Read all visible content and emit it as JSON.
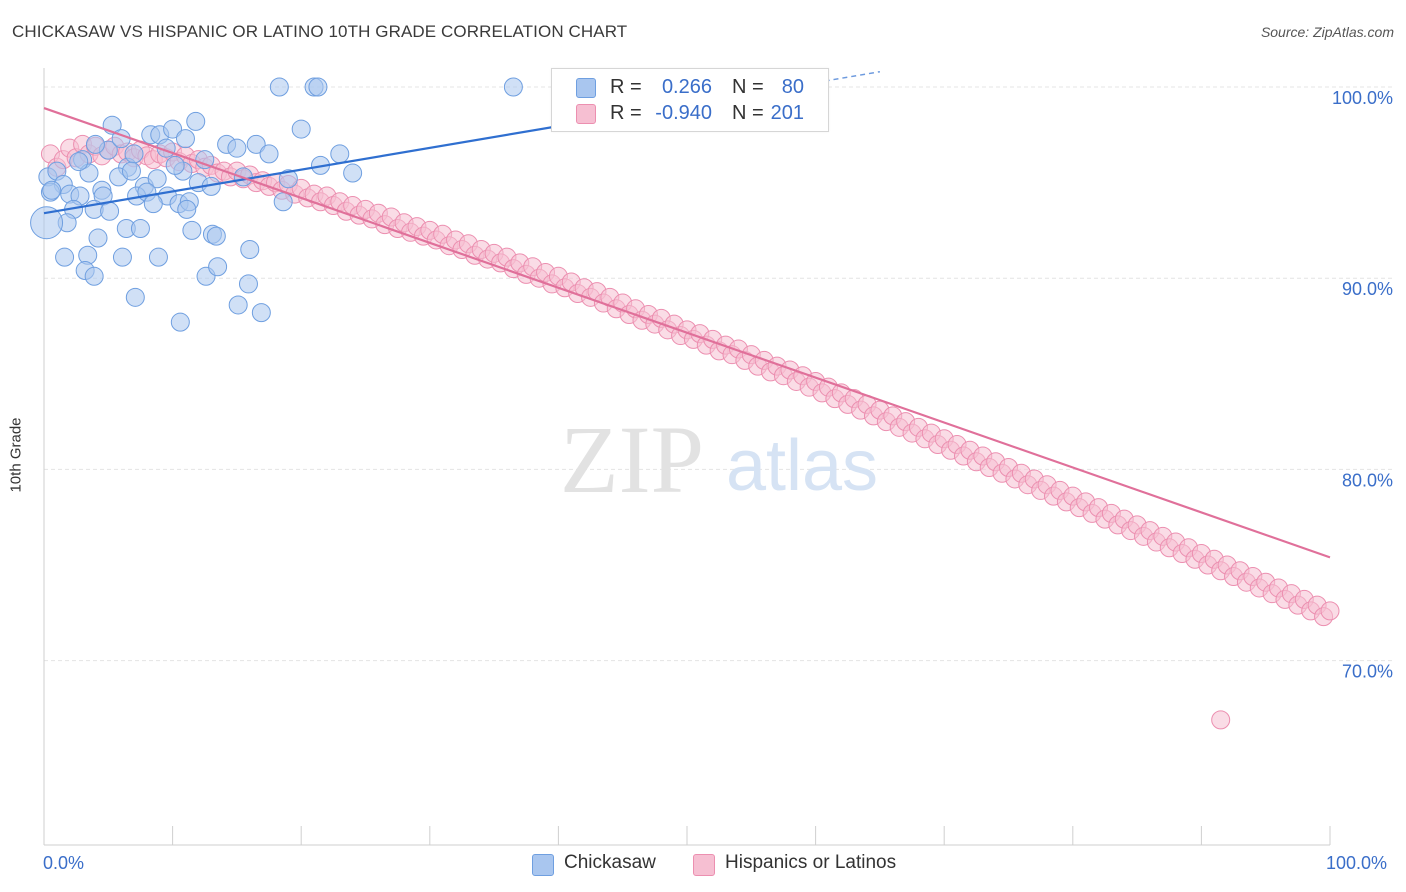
{
  "title": "CHICKASAW VS HISPANIC OR LATINO 10TH GRADE CORRELATION CHART",
  "source": "Source: ZipAtlas.com",
  "watermark": {
    "zip": "ZIP",
    "atlas": "atlas"
  },
  "colors": {
    "blue_fill": "#a9c6ef",
    "blue_stroke": "#6f9fe0",
    "blue_line": "#2f6fd0",
    "pink_fill": "#f6bfd2",
    "pink_stroke": "#ec8fb0",
    "pink_line": "#e0709a",
    "tick_text": "#3a6ec9",
    "grid": "#e4e4e4"
  },
  "legend": {
    "rows": [
      {
        "r_label": "R =",
        "r_value": "0.266",
        "n_label": "N =",
        "n_value": "80",
        "color": "#a9c6ef"
      },
      {
        "r_label": "R =",
        "r_value": "-0.940",
        "n_label": "N =",
        "n_value": "201",
        "color": "#f6bfd2"
      }
    ]
  },
  "bottom_legend": [
    {
      "label": "Chickasaw",
      "color": "#a9c6ef"
    },
    {
      "label": "Hispanics or Latinos",
      "color": "#f6bfd2"
    }
  ],
  "chart_data": {
    "type": "scatter",
    "title": "CHICKASAW VS HISPANIC OR LATINO 10TH GRADE CORRELATION CHART",
    "xlabel": "",
    "ylabel": "10th Grade",
    "xlim": [
      0,
      100
    ],
    "ylim": [
      60,
      102
    ],
    "x_tick_labels": [
      "0.0%",
      "100.0%"
    ],
    "y_ticks": [
      100,
      90,
      80,
      70
    ],
    "y_tick_labels": [
      "100.0%",
      "90.0%",
      "80.0%",
      "70.0%"
    ],
    "grid": true,
    "series": [
      {
        "name": "Chickasaw",
        "trend": {
          "x": [
            0,
            65
          ],
          "y": [
            93.4,
            100.8
          ],
          "dashed_from_x": 40
        },
        "points": [
          [
            18.3,
            100
          ],
          [
            21,
            100
          ],
          [
            21.3,
            100
          ],
          [
            36.5,
            100
          ],
          [
            5.3,
            98
          ],
          [
            8.3,
            97.5
          ],
          [
            9,
            97.5
          ],
          [
            10,
            97.8
          ],
          [
            11,
            97.3
          ],
          [
            11.8,
            98.2
          ],
          [
            14.2,
            97
          ],
          [
            3,
            96.2
          ],
          [
            5,
            96.7
          ],
          [
            6.5,
            95.8
          ],
          [
            7,
            96.5
          ],
          [
            12.5,
            96.2
          ],
          [
            15,
            96.8
          ],
          [
            16.5,
            97
          ],
          [
            20,
            97.8
          ],
          [
            23,
            96.5
          ],
          [
            0.3,
            95.3
          ],
          [
            1,
            95.6
          ],
          [
            1.5,
            94.9
          ],
          [
            3.5,
            95.5
          ],
          [
            4.5,
            94.6
          ],
          [
            5.8,
            95.3
          ],
          [
            6.8,
            95.6
          ],
          [
            7.8,
            94.8
          ],
          [
            8.8,
            95.2
          ],
          [
            10.8,
            95.6
          ],
          [
            12,
            95
          ],
          [
            15.5,
            95.3
          ],
          [
            21.5,
            95.9
          ],
          [
            24,
            95.5
          ],
          [
            0.5,
            94.5
          ],
          [
            2,
            94.4
          ],
          [
            2.8,
            94.3
          ],
          [
            4.6,
            94.3
          ],
          [
            7.2,
            94.3
          ],
          [
            8,
            94.5
          ],
          [
            9.6,
            94.3
          ],
          [
            10.5,
            93.9
          ],
          [
            11.3,
            94
          ],
          [
            18.6,
            94
          ],
          [
            2.3,
            93.6
          ],
          [
            3.9,
            93.6
          ],
          [
            5.1,
            93.5
          ],
          [
            8.5,
            93.9
          ],
          [
            11.1,
            93.6
          ],
          [
            1.8,
            92.9
          ],
          [
            6.4,
            92.6
          ],
          [
            7.5,
            92.6
          ],
          [
            11.5,
            92.5
          ],
          [
            13.1,
            92.3
          ],
          [
            13.4,
            92.2
          ],
          [
            4.2,
            92.1
          ],
          [
            3.4,
            91.2
          ],
          [
            1.6,
            91.1
          ],
          [
            6.1,
            91.1
          ],
          [
            8.9,
            91.1
          ],
          [
            16,
            91.5
          ],
          [
            3.2,
            90.4
          ],
          [
            3.9,
            90.1
          ],
          [
            12.6,
            90.1
          ],
          [
            13.5,
            90.6
          ],
          [
            15.9,
            89.7
          ],
          [
            7.1,
            89
          ],
          [
            15.1,
            88.6
          ],
          [
            16.9,
            88.2
          ],
          [
            10.6,
            87.7
          ],
          [
            0.2,
            92.9
          ],
          [
            0.6,
            94.6
          ],
          [
            2.7,
            96.1
          ],
          [
            4,
            97
          ],
          [
            6,
            97.3
          ],
          [
            9.5,
            96.8
          ],
          [
            10.2,
            95.9
          ],
          [
            13,
            94.8
          ],
          [
            17.5,
            96.5
          ],
          [
            19,
            95.2
          ]
        ]
      },
      {
        "name": "Hispanics or Latinos",
        "trend": {
          "x": [
            0,
            100
          ],
          "y": [
            98.9,
            75.4
          ]
        },
        "points": [
          [
            0.5,
            96.5
          ],
          [
            1,
            95.8
          ],
          [
            1.5,
            96.2
          ],
          [
            2,
            96.8
          ],
          [
            2.5,
            96.3
          ],
          [
            3,
            97
          ],
          [
            3.5,
            96.5
          ],
          [
            4,
            96.9
          ],
          [
            4.5,
            96.4
          ],
          [
            5,
            96.7
          ],
          [
            5.5,
            96.9
          ],
          [
            6,
            96.5
          ],
          [
            6.5,
            96.6
          ],
          [
            7,
            96.3
          ],
          [
            7.5,
            96.7
          ],
          [
            8,
            96.4
          ],
          [
            8.5,
            96.2
          ],
          [
            9,
            96.5
          ],
          [
            9.5,
            96.3
          ],
          [
            10,
            96.6
          ],
          [
            10.5,
            96.1
          ],
          [
            11,
            96.4
          ],
          [
            11.5,
            96
          ],
          [
            12,
            96.2
          ],
          [
            12.5,
            95.8
          ],
          [
            13,
            95.9
          ],
          [
            13.5,
            95.5
          ],
          [
            14,
            95.6
          ],
          [
            14.5,
            95.3
          ],
          [
            15,
            95.6
          ],
          [
            15.5,
            95.2
          ],
          [
            16,
            95.4
          ],
          [
            16.5,
            95
          ],
          [
            17,
            95.1
          ],
          [
            17.5,
            94.8
          ],
          [
            18,
            95
          ],
          [
            18.5,
            94.6
          ],
          [
            19,
            94.9
          ],
          [
            19.5,
            94.4
          ],
          [
            20,
            94.7
          ],
          [
            20.5,
            94.2
          ],
          [
            21,
            94.4
          ],
          [
            21.5,
            94
          ],
          [
            22,
            94.3
          ],
          [
            22.5,
            93.8
          ],
          [
            23,
            94
          ],
          [
            23.5,
            93.5
          ],
          [
            24,
            93.8
          ],
          [
            24.5,
            93.3
          ],
          [
            25,
            93.6
          ],
          [
            25.5,
            93.1
          ],
          [
            26,
            93.4
          ],
          [
            26.5,
            92.8
          ],
          [
            27,
            93.2
          ],
          [
            27.5,
            92.6
          ],
          [
            28,
            92.9
          ],
          [
            28.5,
            92.4
          ],
          [
            29,
            92.7
          ],
          [
            29.5,
            92.2
          ],
          [
            30,
            92.5
          ],
          [
            30.5,
            92
          ],
          [
            31,
            92.3
          ],
          [
            31.5,
            91.7
          ],
          [
            32,
            92
          ],
          [
            32.5,
            91.5
          ],
          [
            33,
            91.8
          ],
          [
            33.5,
            91.2
          ],
          [
            34,
            91.5
          ],
          [
            34.5,
            91
          ],
          [
            35,
            91.3
          ],
          [
            35.5,
            90.8
          ],
          [
            36,
            91.1
          ],
          [
            36.5,
            90.5
          ],
          [
            37,
            90.8
          ],
          [
            37.5,
            90.2
          ],
          [
            38,
            90.6
          ],
          [
            38.5,
            90
          ],
          [
            39,
            90.3
          ],
          [
            39.5,
            89.7
          ],
          [
            40,
            90.1
          ],
          [
            40.5,
            89.5
          ],
          [
            41,
            89.8
          ],
          [
            41.5,
            89.2
          ],
          [
            42,
            89.5
          ],
          [
            42.5,
            89
          ],
          [
            43,
            89.3
          ],
          [
            43.5,
            88.7
          ],
          [
            44,
            89
          ],
          [
            44.5,
            88.4
          ],
          [
            45,
            88.7
          ],
          [
            45.5,
            88.1
          ],
          [
            46,
            88.4
          ],
          [
            46.5,
            87.8
          ],
          [
            47,
            88.1
          ],
          [
            47.5,
            87.6
          ],
          [
            48,
            87.9
          ],
          [
            48.5,
            87.3
          ],
          [
            49,
            87.6
          ],
          [
            49.5,
            87
          ],
          [
            50,
            87.3
          ],
          [
            50.5,
            86.8
          ],
          [
            51,
            87.1
          ],
          [
            51.5,
            86.5
          ],
          [
            52,
            86.8
          ],
          [
            52.5,
            86.2
          ],
          [
            53,
            86.5
          ],
          [
            53.5,
            86
          ],
          [
            54,
            86.3
          ],
          [
            54.5,
            85.7
          ],
          [
            55,
            86
          ],
          [
            55.5,
            85.4
          ],
          [
            56,
            85.7
          ],
          [
            56.5,
            85.1
          ],
          [
            57,
            85.4
          ],
          [
            57.5,
            84.9
          ],
          [
            58,
            85.2
          ],
          [
            58.5,
            84.6
          ],
          [
            59,
            84.9
          ],
          [
            59.5,
            84.3
          ],
          [
            60,
            84.6
          ],
          [
            60.5,
            84
          ],
          [
            61,
            84.3
          ],
          [
            61.5,
            83.7
          ],
          [
            62,
            84
          ],
          [
            62.5,
            83.4
          ],
          [
            63,
            83.7
          ],
          [
            63.5,
            83.1
          ],
          [
            64,
            83.4
          ],
          [
            64.5,
            82.8
          ],
          [
            65,
            83.1
          ],
          [
            65.5,
            82.5
          ],
          [
            66,
            82.8
          ],
          [
            66.5,
            82.2
          ],
          [
            67,
            82.5
          ],
          [
            67.5,
            81.9
          ],
          [
            68,
            82.2
          ],
          [
            68.5,
            81.6
          ],
          [
            69,
            81.9
          ],
          [
            69.5,
            81.3
          ],
          [
            70,
            81.6
          ],
          [
            70.5,
            81
          ],
          [
            71,
            81.3
          ],
          [
            71.5,
            80.7
          ],
          [
            72,
            81
          ],
          [
            72.5,
            80.4
          ],
          [
            73,
            80.7
          ],
          [
            73.5,
            80.1
          ],
          [
            74,
            80.4
          ],
          [
            74.5,
            79.8
          ],
          [
            75,
            80.1
          ],
          [
            75.5,
            79.5
          ],
          [
            76,
            79.8
          ],
          [
            76.5,
            79.2
          ],
          [
            77,
            79.5
          ],
          [
            77.5,
            78.9
          ],
          [
            78,
            79.2
          ],
          [
            78.5,
            78.6
          ],
          [
            79,
            78.9
          ],
          [
            79.5,
            78.3
          ],
          [
            80,
            78.6
          ],
          [
            80.5,
            78
          ],
          [
            81,
            78.3
          ],
          [
            81.5,
            77.7
          ],
          [
            82,
            78
          ],
          [
            82.5,
            77.4
          ],
          [
            83,
            77.7
          ],
          [
            83.5,
            77.1
          ],
          [
            84,
            77.4
          ],
          [
            84.5,
            76.8
          ],
          [
            85,
            77.1
          ],
          [
            85.5,
            76.5
          ],
          [
            86,
            76.8
          ],
          [
            86.5,
            76.2
          ],
          [
            87,
            76.5
          ],
          [
            87.5,
            75.9
          ],
          [
            88,
            76.2
          ],
          [
            88.5,
            75.6
          ],
          [
            89,
            75.9
          ],
          [
            89.5,
            75.3
          ],
          [
            90,
            75.6
          ],
          [
            90.5,
            75
          ],
          [
            91,
            75.3
          ],
          [
            91.5,
            74.7
          ],
          [
            92,
            75
          ],
          [
            92.5,
            74.4
          ],
          [
            93,
            74.7
          ],
          [
            93.5,
            74.1
          ],
          [
            94,
            74.4
          ],
          [
            94.5,
            73.8
          ],
          [
            95,
            74.1
          ],
          [
            95.5,
            73.5
          ],
          [
            96,
            73.8
          ],
          [
            96.5,
            73.2
          ],
          [
            97,
            73.5
          ],
          [
            97.5,
            72.9
          ],
          [
            98,
            73.2
          ],
          [
            98.5,
            72.6
          ],
          [
            99,
            72.9
          ],
          [
            99.5,
            72.3
          ],
          [
            100,
            72.6
          ],
          [
            91.5,
            66.9
          ]
        ]
      }
    ]
  }
}
